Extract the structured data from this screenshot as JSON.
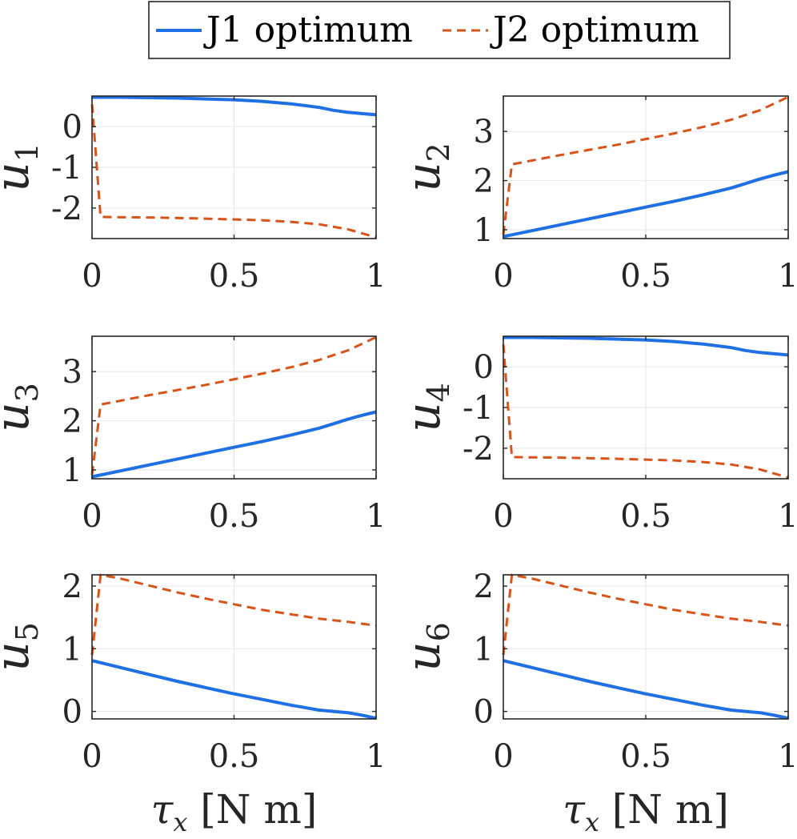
{
  "chart_data": {
    "type": "line",
    "legend": {
      "placement": "top-center",
      "entries": [
        {
          "label": "J1 optimum",
          "color": "#1f6fe5",
          "style": "solid"
        },
        {
          "label": "J2 optimum",
          "color": "#d95319",
          "style": "dashed"
        }
      ]
    },
    "xlabel_symbol": "τ",
    "xlabel_subscript": "x",
    "xlabel_units": "[N m]",
    "panels": [
      {
        "ylabel": "u",
        "ysub": "1",
        "xlim": [
          0,
          1
        ],
        "ylim": [
          -2.75,
          0.75
        ],
        "xticks": [
          0,
          0.5,
          1
        ],
        "xtick_labels": [
          "0",
          "0.5",
          "1"
        ],
        "yticks": [
          -2,
          -1,
          0
        ],
        "ytick_labels": [
          "-2",
          "-1",
          "0"
        ],
        "series": [
          {
            "name": "J1 optimum",
            "x": [
              0,
              0.1,
              0.2,
              0.3,
              0.4,
              0.5,
              0.6,
              0.7,
              0.8,
              0.85,
              0.9,
              0.95,
              1.0
            ],
            "y": [
              0.72,
              0.72,
              0.71,
              0.7,
              0.68,
              0.66,
              0.62,
              0.56,
              0.47,
              0.4,
              0.35,
              0.32,
              0.29
            ]
          },
          {
            "name": "J2 optimum",
            "x": [
              0,
              0.03,
              0.2,
              0.4,
              0.6,
              0.7,
              0.8,
              0.9,
              1.0
            ],
            "y": [
              0.55,
              -2.22,
              -2.23,
              -2.26,
              -2.3,
              -2.34,
              -2.4,
              -2.52,
              -2.72
            ]
          }
        ]
      },
      {
        "ylabel": "u",
        "ysub": "2",
        "xlim": [
          0,
          1
        ],
        "ylim": [
          0.82,
          3.72
        ],
        "xticks": [
          0,
          0.5,
          1
        ],
        "xtick_labels": [
          "0",
          "0.5",
          "1"
        ],
        "yticks": [
          1,
          2,
          3
        ],
        "ytick_labels": [
          "1",
          "2",
          "3"
        ],
        "series": [
          {
            "name": "J1 optimum",
            "x": [
              0,
              0.1,
              0.2,
              0.3,
              0.4,
              0.5,
              0.6,
              0.7,
              0.8,
              0.85,
              0.9,
              0.95,
              1.0
            ],
            "y": [
              0.86,
              0.98,
              1.1,
              1.22,
              1.34,
              1.46,
              1.58,
              1.71,
              1.85,
              1.94,
              2.03,
              2.11,
              2.18
            ]
          },
          {
            "name": "J2 optimum",
            "x": [
              0,
              0.03,
              0.2,
              0.4,
              0.6,
              0.7,
              0.8,
              0.9,
              1.0
            ],
            "y": [
              0.9,
              2.33,
              2.52,
              2.73,
              2.96,
              3.09,
              3.24,
              3.43,
              3.7
            ]
          }
        ]
      },
      {
        "ylabel": "u",
        "ysub": "3",
        "xlim": [
          0,
          1
        ],
        "ylim": [
          0.82,
          3.72
        ],
        "xticks": [
          0,
          0.5,
          1
        ],
        "xtick_labels": [
          "0",
          "0.5",
          "1"
        ],
        "yticks": [
          1,
          2,
          3
        ],
        "ytick_labels": [
          "1",
          "2",
          "3"
        ],
        "series": [
          {
            "name": "J1 optimum",
            "x": [
              0,
              0.1,
              0.2,
              0.3,
              0.4,
              0.5,
              0.6,
              0.7,
              0.8,
              0.85,
              0.9,
              0.95,
              1.0
            ],
            "y": [
              0.86,
              0.98,
              1.1,
              1.22,
              1.34,
              1.46,
              1.58,
              1.71,
              1.85,
              1.94,
              2.03,
              2.11,
              2.18
            ]
          },
          {
            "name": "J2 optimum",
            "x": [
              0,
              0.03,
              0.2,
              0.4,
              0.6,
              0.7,
              0.8,
              0.9,
              1.0
            ],
            "y": [
              0.9,
              2.33,
              2.52,
              2.73,
              2.96,
              3.09,
              3.24,
              3.43,
              3.7
            ]
          }
        ]
      },
      {
        "ylabel": "u",
        "ysub": "4",
        "xlim": [
          0,
          1
        ],
        "ylim": [
          -2.75,
          0.75
        ],
        "xticks": [
          0,
          0.5,
          1
        ],
        "xtick_labels": [
          "0",
          "0.5",
          "1"
        ],
        "yticks": [
          -2,
          -1,
          0
        ],
        "ytick_labels": [
          "-2",
          "-1",
          "0"
        ],
        "series": [
          {
            "name": "J1 optimum",
            "x": [
              0,
              0.1,
              0.2,
              0.3,
              0.4,
              0.5,
              0.6,
              0.7,
              0.8,
              0.85,
              0.9,
              0.95,
              1.0
            ],
            "y": [
              0.72,
              0.72,
              0.71,
              0.7,
              0.68,
              0.66,
              0.62,
              0.56,
              0.47,
              0.4,
              0.35,
              0.32,
              0.29
            ]
          },
          {
            "name": "J2 optimum",
            "x": [
              0,
              0.03,
              0.2,
              0.4,
              0.6,
              0.7,
              0.8,
              0.9,
              1.0
            ],
            "y": [
              0.55,
              -2.22,
              -2.23,
              -2.26,
              -2.3,
              -2.34,
              -2.4,
              -2.52,
              -2.72
            ]
          }
        ]
      },
      {
        "ylabel": "u",
        "ysub": "5",
        "xlim": [
          0,
          1
        ],
        "ylim": [
          -0.12,
          2.18
        ],
        "xticks": [
          0,
          0.5,
          1
        ],
        "xtick_labels": [
          "0",
          "0.5",
          "1"
        ],
        "yticks": [
          0,
          1,
          2
        ],
        "ytick_labels": [
          "0",
          "1",
          "2"
        ],
        "series": [
          {
            "name": "J1 optimum",
            "x": [
              0,
              0.1,
              0.2,
              0.3,
              0.4,
              0.5,
              0.6,
              0.7,
              0.8,
              0.85,
              0.9,
              0.95,
              1.0
            ],
            "y": [
              0.81,
              0.7,
              0.59,
              0.48,
              0.38,
              0.28,
              0.19,
              0.1,
              0.02,
              0.0,
              -0.02,
              -0.06,
              -0.11
            ]
          },
          {
            "name": "J2 optimum",
            "x": [
              0,
              0.03,
              0.1,
              0.2,
              0.3,
              0.4,
              0.5,
              0.6,
              0.7,
              0.8,
              0.9,
              1.0
            ],
            "y": [
              0.9,
              2.18,
              2.12,
              2.01,
              1.9,
              1.8,
              1.71,
              1.62,
              1.55,
              1.48,
              1.43,
              1.37
            ]
          }
        ]
      },
      {
        "ylabel": "u",
        "ysub": "6",
        "xlim": [
          0,
          1
        ],
        "ylim": [
          -0.12,
          2.18
        ],
        "xticks": [
          0,
          0.5,
          1
        ],
        "xtick_labels": [
          "0",
          "0.5",
          "1"
        ],
        "yticks": [
          0,
          1,
          2
        ],
        "ytick_labels": [
          "0",
          "1",
          "2"
        ],
        "series": [
          {
            "name": "J1 optimum",
            "x": [
              0,
              0.1,
              0.2,
              0.3,
              0.4,
              0.5,
              0.6,
              0.7,
              0.8,
              0.85,
              0.9,
              0.95,
              1.0
            ],
            "y": [
              0.81,
              0.7,
              0.59,
              0.48,
              0.38,
              0.28,
              0.19,
              0.1,
              0.02,
              0.0,
              -0.02,
              -0.06,
              -0.11
            ]
          },
          {
            "name": "J2 optimum",
            "x": [
              0,
              0.03,
              0.1,
              0.2,
              0.3,
              0.4,
              0.5,
              0.6,
              0.7,
              0.8,
              0.9,
              1.0
            ],
            "y": [
              0.9,
              2.18,
              2.12,
              2.01,
              1.9,
              1.8,
              1.71,
              1.62,
              1.55,
              1.48,
              1.43,
              1.37
            ]
          }
        ]
      }
    ]
  }
}
